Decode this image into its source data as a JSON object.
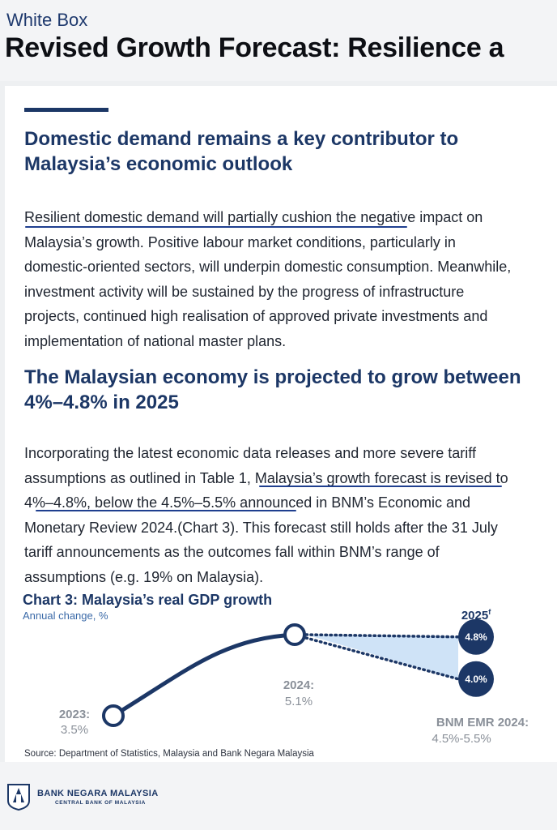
{
  "header": {
    "kicker": "White Box",
    "title": "Revised Growth Forecast: Resilience a"
  },
  "section1": {
    "heading": "Domestic demand remains a key contributor to\nMalaysia’s economic outlook",
    "body": "Resilient domestic demand will partially cushion the negative impact on\nMalaysia’s growth. Positive labour market conditions, particularly in\ndomestic-oriented sectors, will underpin domestic consumption. Meanwhile,\ninvestment activity will be sustained by the progress of infrastructure\nprojects, continued high realisation of approved private investments and\nimplementation of national master plans."
  },
  "section2": {
    "heading": "The Malaysian economy is projected to grow between\n4%–4.8% in 2025",
    "body": "Incorporating the latest economic data releases and more severe tariff\nassumptions as outlined in Table 1, Malaysia’s growth forecast is revised to\n4%–4.8%, below the 4.5%–5.5% announced in BNM’s Economic and\nMonetary Review 2024.(Chart 3). This forecast still holds after the 31 July\ntariff announcements as the outcomes fall within BNM’s range of\nassumptions (e.g. 19% on Malaysia)."
  },
  "chart": {
    "title": "Chart 3: Malaysia’s real GDP growth",
    "subtitle": "Annual change, %",
    "label_2023_year": "2023:",
    "label_2023_value": "3.5%",
    "label_2024_year": "2024:",
    "label_2024_value": "5.1%",
    "label_2025_year": "2025",
    "label_2025_suffix": "f",
    "forecast_high": "4.8%",
    "forecast_low": "4.0%",
    "emr_label": "BNM EMR 2024:",
    "emr_value": "4.5%-5.5%",
    "source": "Source: Department of Statistics, Malaysia and Bank Negara Malaysia"
  },
  "chart_data": {
    "type": "line",
    "title": "Chart 3: Malaysia’s real GDP growth",
    "ylabel": "Annual change, %",
    "categories": [
      "2023",
      "2024",
      "2025f"
    ],
    "series": [
      {
        "values": [
          3.5,
          5.1,
          null
        ]
      }
    ],
    "forecast_range": {
      "category": "2025f",
      "low": 4.0,
      "high": 4.8
    },
    "comparison": {
      "label": "BNM EMR 2024",
      "low": 4.5,
      "high": 5.5
    },
    "grid": false,
    "colors": {
      "line": "#1c3766",
      "forecast_fill": "#cfe3f7"
    }
  },
  "footer": {
    "bank_name": "BANK NEGARA MALAYSIA",
    "bank_sub": "CENTRAL BANK OF MALAYSIA",
    "logo_icon": "bnm-logo-icon"
  },
  "colors": {
    "navy": "#1c3766",
    "underline": "#1f3f8f",
    "light_blue_fill": "#cfe3f7",
    "grey_label": "#8a9099"
  }
}
